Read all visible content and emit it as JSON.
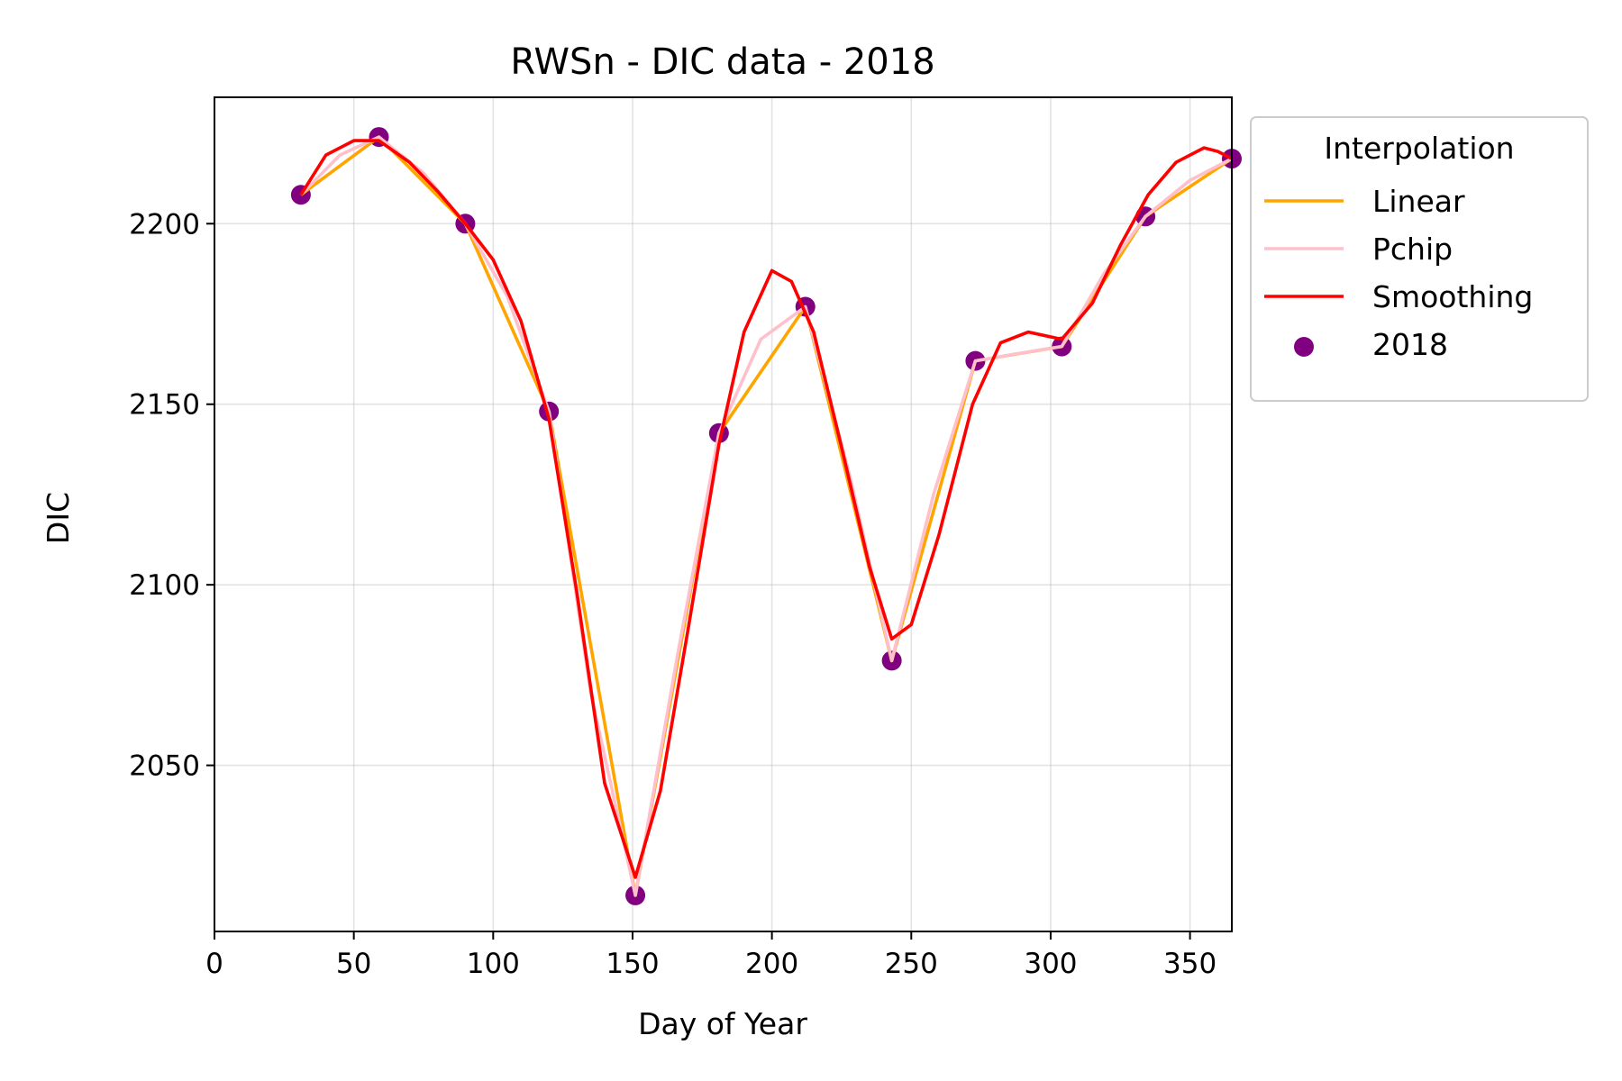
{
  "chart_data": {
    "type": "line",
    "title": "RWSn - DIC data - 2018",
    "xlabel": "Day of Year",
    "ylabel": "DIC",
    "xlim": [
      0,
      365
    ],
    "ylim": [
      2004,
      2235
    ],
    "xticks": [
      0,
      50,
      100,
      150,
      200,
      250,
      300,
      350
    ],
    "yticks": [
      2050,
      2100,
      2150,
      2200
    ],
    "grid": true,
    "legend": {
      "title": "Interpolation",
      "placement": "outside-top-right"
    },
    "series": [
      {
        "name": "Linear",
        "kind": "line",
        "color": "#ffa500",
        "x": [
          31,
          59,
          90,
          120,
          151,
          181,
          212,
          243,
          273,
          304,
          334,
          365
        ],
        "y": [
          2208,
          2224,
          2200,
          2148,
          2014,
          2142,
          2177,
          2079,
          2162,
          2166,
          2202,
          2218
        ]
      },
      {
        "name": "Pchip",
        "kind": "line",
        "color": "#ffc0cb",
        "x": [
          31,
          45,
          59,
          75,
          90,
          105,
          120,
          135,
          151,
          166,
          181,
          196,
          212,
          228,
          243,
          258,
          273,
          288,
          304,
          319,
          334,
          350,
          365
        ],
        "y": [
          2208,
          2219,
          2224,
          2214,
          2200,
          2180,
          2148,
          2070,
          2014,
          2080,
          2142,
          2168,
          2177,
          2130,
          2079,
          2125,
          2162,
          2164,
          2166,
          2186,
          2202,
          2212,
          2218
        ]
      },
      {
        "name": "Smoothing",
        "kind": "line",
        "color": "#ff0000",
        "x": [
          31,
          40,
          50,
          59,
          70,
          80,
          90,
          100,
          110,
          120,
          130,
          140,
          151,
          160,
          170,
          181,
          190,
          200,
          207,
          215,
          225,
          235,
          243,
          250,
          260,
          272,
          282,
          292,
          304,
          315,
          325,
          335,
          345,
          355,
          360,
          365
        ],
        "y": [
          2208,
          2219,
          2223,
          2223,
          2217,
          2209,
          2200,
          2190,
          2173,
          2146,
          2098,
          2045,
          2019,
          2043,
          2088,
          2139,
          2170,
          2187,
          2184,
          2170,
          2138,
          2105,
          2085,
          2089,
          2114,
          2150,
          2167,
          2170,
          2168,
          2178,
          2194,
          2208,
          2217,
          2221,
          2220,
          2218
        ]
      },
      {
        "name": "2018",
        "kind": "scatter",
        "color": "#800080",
        "x": [
          31,
          59,
          90,
          120,
          151,
          181,
          212,
          243,
          273,
          304,
          334,
          365
        ],
        "y": [
          2208,
          2224,
          2200,
          2148,
          2014,
          2142,
          2177,
          2079,
          2162,
          2166,
          2202,
          2218
        ]
      }
    ]
  }
}
